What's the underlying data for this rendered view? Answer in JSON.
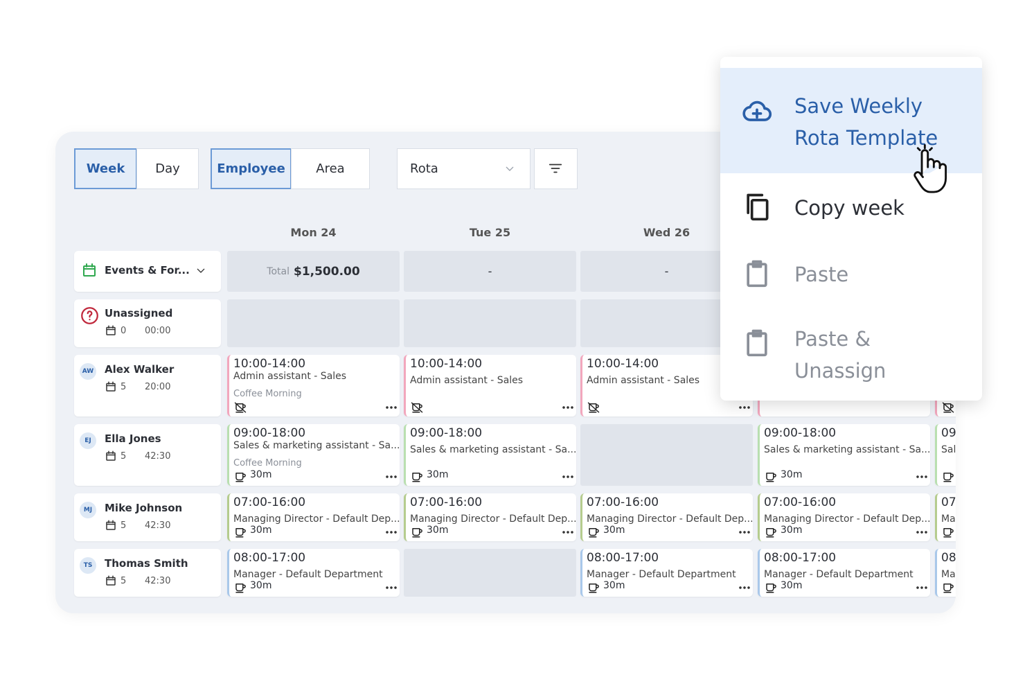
{
  "toolbar": {
    "view_tabs": [
      "Week",
      "Day"
    ],
    "group_tabs": [
      "Employee",
      "Area"
    ],
    "select": "Rota"
  },
  "days": [
    "Mon 24",
    "Tue 25",
    "Wed 26"
  ],
  "events": {
    "label": "Events & For...",
    "totals": [
      {
        "label": "Total",
        "value": "$1,500.00"
      },
      "-",
      "-"
    ]
  },
  "unassigned": {
    "name": "Unassigned",
    "shifts": "0",
    "hours": "00:00"
  },
  "employees": [
    {
      "initials": "AW",
      "name": "Alex Walker",
      "shifts": "5",
      "hours": "20:00",
      "color": "#f2a7bd",
      "cells": [
        {
          "time": "10:00-14:00",
          "role": "Admin assistant - Sales",
          "note": "Coffee Morning",
          "no_break": true
        },
        {
          "time": "10:00-14:00",
          "role": "Admin assistant - Sales",
          "no_break": true
        },
        {
          "time": "10:00-14:00",
          "role": "Admin assistant - Sales",
          "no_break": true
        },
        {
          "hidden": true
        },
        {
          "no_break": true
        }
      ]
    },
    {
      "initials": "EJ",
      "name": "Ella Jones",
      "shifts": "5",
      "hours": "42:30",
      "color": "#b9dfb0",
      "cells": [
        {
          "time": "09:00-18:00",
          "role": "Sales & marketing assistant - Sa...",
          "note": "Coffee Morning",
          "break": "30m"
        },
        {
          "time": "09:00-18:00",
          "role": "Sales & marketing assistant - Sa...",
          "break": "30m"
        },
        null,
        {
          "time": "09:00-18:00",
          "role": "Sales & marketing assistant - Sa...",
          "break": "30m"
        },
        {
          "time": "09",
          "role": "Sal"
        }
      ]
    },
    {
      "initials": "MJ",
      "name": "Mike Johnson",
      "shifts": "5",
      "hours": "42:30",
      "color": "#b5cc8e",
      "cells": [
        {
          "time": "07:00-16:00",
          "role": "Managing Director - Default Dep...",
          "break": "30m"
        },
        {
          "time": "07:00-16:00",
          "role": "Managing Director - Default Dep...",
          "break": "30m"
        },
        {
          "time": "07:00-16:00",
          "role": "Managing Director - Default Dep...",
          "break": "30m"
        },
        {
          "time": "07:00-16:00",
          "role": "Managing Director - Default Dep...",
          "break": "30m"
        },
        {
          "time": "07",
          "role": "Ma"
        }
      ]
    },
    {
      "initials": "TS",
      "name": "Thomas Smith",
      "shifts": "5",
      "hours": "42:30",
      "color": "#a9c8ea",
      "cells": [
        {
          "time": "08:00-17:00",
          "role": "Manager - Default Department",
          "break": "30m"
        },
        null,
        {
          "time": "08:00-17:00",
          "role": "Manager - Default Department",
          "break": "30m"
        },
        {
          "time": "08:00-17:00",
          "role": "Manager - Default Department",
          "break": "30m"
        },
        {
          "time": "08",
          "role": "Ma"
        }
      ]
    }
  ],
  "menu": {
    "items": [
      {
        "lines": [
          "Save Weekly",
          "Rota Template"
        ],
        "active": true
      },
      {
        "lines": [
          "Copy week"
        ]
      },
      {
        "lines": [
          "Paste"
        ],
        "disabled": true
      },
      {
        "lines": [
          "Paste &",
          "Unassign"
        ],
        "disabled": true
      }
    ]
  }
}
